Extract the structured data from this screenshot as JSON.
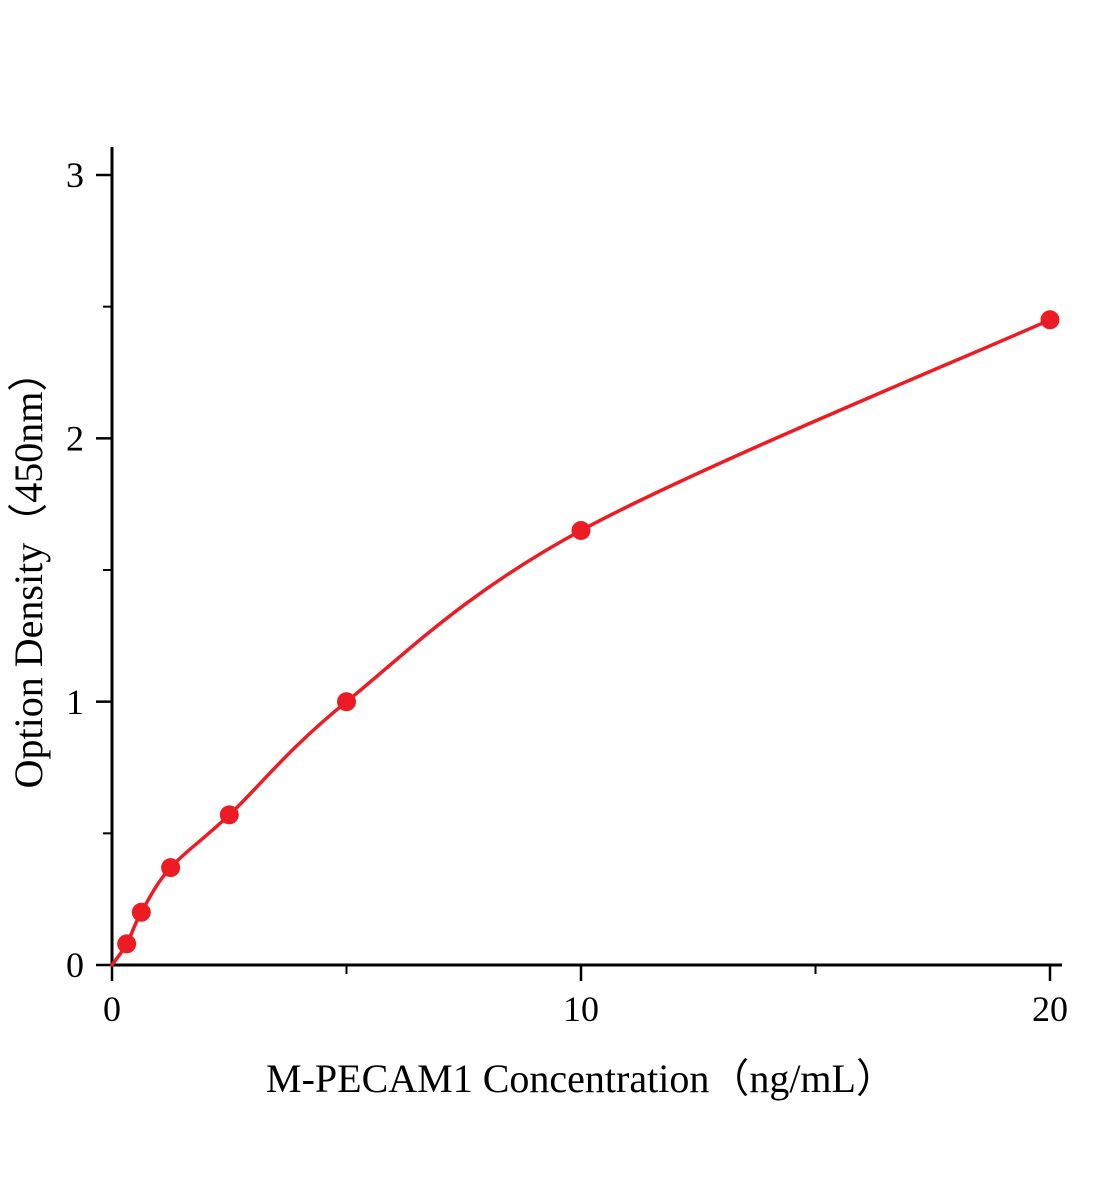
{
  "chart_data": {
    "type": "line",
    "title": "",
    "xlabel": "M-PECAM1 Concentration（ng/mL）",
    "ylabel": "Option Density（450nm）",
    "x": [
      0.313,
      0.625,
      1.25,
      2.5,
      5,
      10,
      20
    ],
    "y": [
      0.08,
      0.2,
      0.37,
      0.57,
      1.0,
      1.65,
      2.45
    ],
    "xlim": [
      0,
      20
    ],
    "ylim": [
      0,
      3
    ],
    "x_major_ticks": [
      0,
      10,
      20
    ],
    "x_minor_ticks": [
      5,
      15
    ],
    "y_major_ticks": [
      0,
      1,
      2,
      3
    ],
    "y_minor_ticks": [
      0.5,
      1.5,
      2.5
    ],
    "grid": false,
    "legend": "none",
    "curve_starts_at_origin": true,
    "line_color": "#ed1c24",
    "marker_color": "#ed1c24",
    "marker_shape": "circle",
    "axis_color": "#000000",
    "background_color": "#ffffff"
  }
}
